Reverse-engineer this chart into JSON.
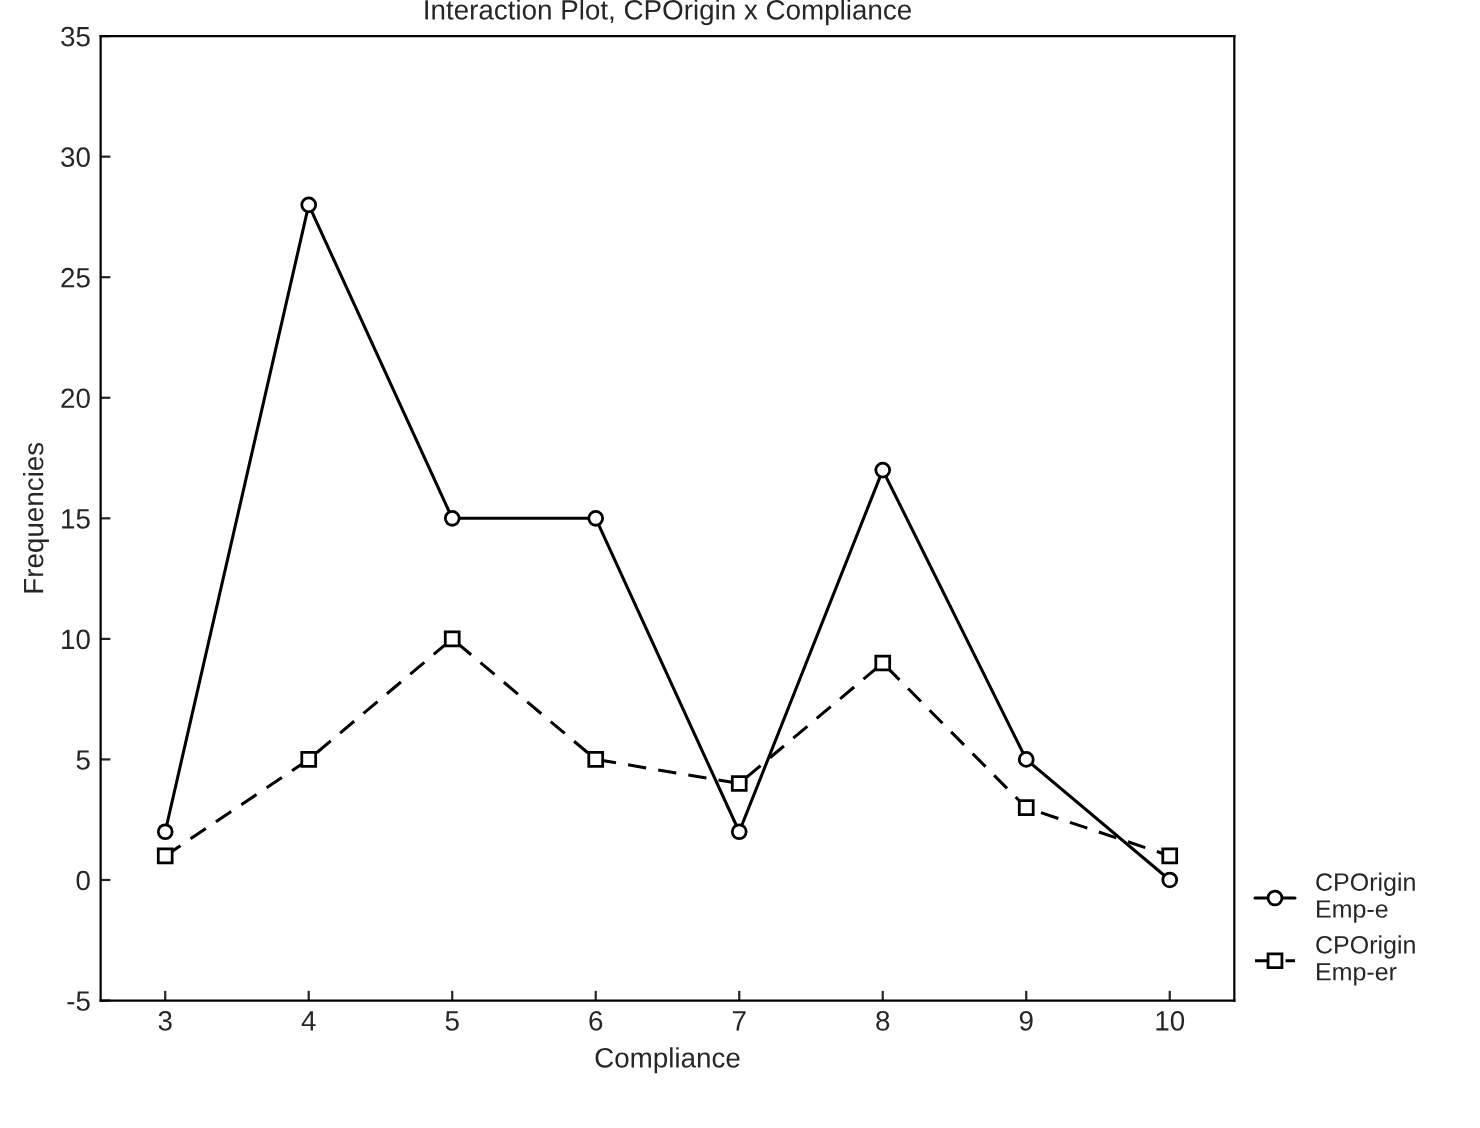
{
  "chart_data": {
    "type": "line",
    "title": "Interaction Plot, CPOrigin x Compliance",
    "xlabel": "Compliance",
    "ylabel": "Frequencies",
    "categories": [
      "3",
      "4",
      "5",
      "6",
      "7",
      "8",
      "9",
      "10"
    ],
    "series": [
      {
        "name": "CPOrigin\nEmp-e",
        "color": "#000000",
        "line_style": "solid",
        "marker": "circle",
        "values": [
          2,
          28,
          15,
          15,
          2,
          17,
          5,
          0
        ]
      },
      {
        "name": "CPOrigin\nEmp-er",
        "color": "#000000",
        "line_style": "dashed",
        "marker": "square",
        "values": [
          1,
          5,
          10,
          5,
          4,
          9,
          3,
          1
        ]
      }
    ],
    "ylim": [
      -5,
      35
    ],
    "yticks": [
      -5,
      0,
      5,
      10,
      15,
      20,
      25,
      30,
      35
    ],
    "grid": false,
    "legend": "bottom right"
  }
}
